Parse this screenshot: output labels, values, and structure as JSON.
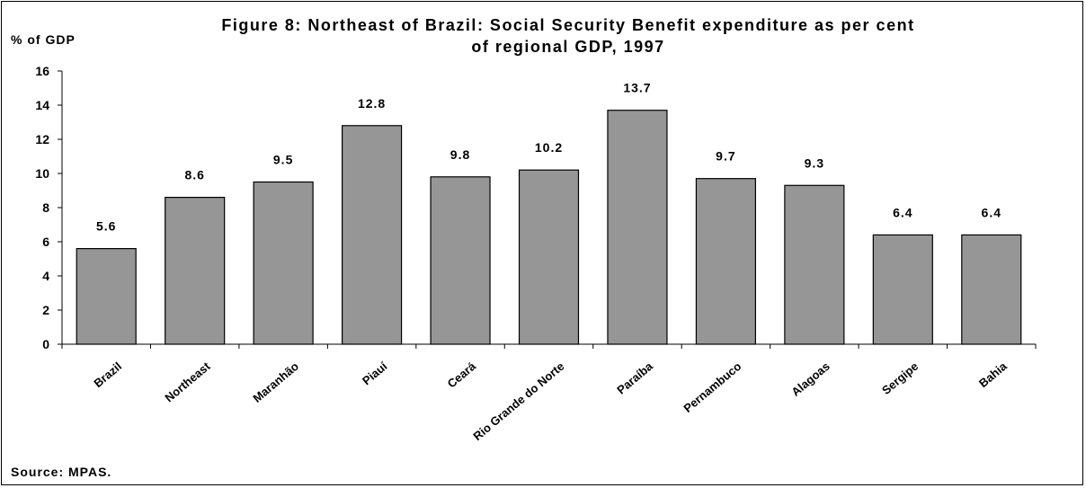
{
  "chart_data": {
    "type": "bar",
    "title_line1": "Figure 8: Northeast of Brazil: Social Security Benefit expenditure as per cent",
    "title_line2": "of regional GDP, 1997",
    "ylabel": "% of GDP",
    "xlabel": "",
    "categories": [
      "Brazil",
      "Northeast",
      "Maranhão",
      "Piauí",
      "Ceará",
      "Rio Grande do Norte",
      "Paraíba",
      "Pernambuco",
      "Alagoas",
      "Sergipe",
      "Bahia"
    ],
    "values": [
      5.6,
      8.6,
      9.5,
      12.8,
      9.8,
      10.2,
      13.7,
      9.7,
      9.3,
      6.4,
      6.4
    ],
    "ylim": [
      0,
      16
    ],
    "yticks": [
      0,
      2,
      4,
      6,
      8,
      10,
      12,
      14,
      16
    ],
    "grid": false,
    "legend": "none",
    "bar_color": "#969696",
    "source": "Source: MPAS."
  }
}
